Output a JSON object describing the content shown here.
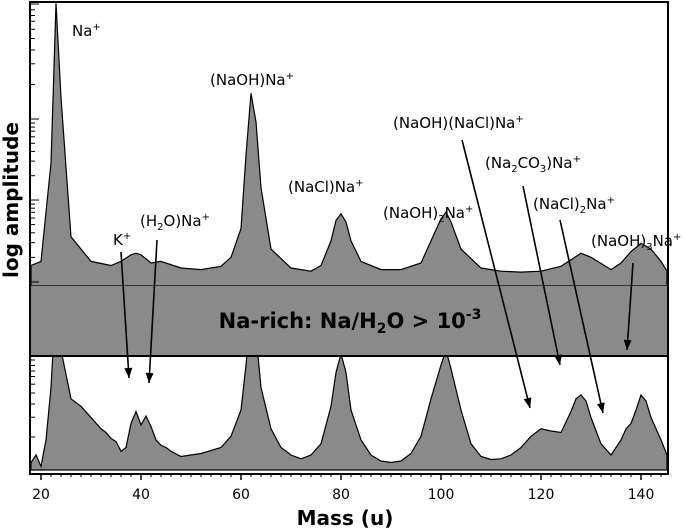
{
  "chart_data": {
    "type": "area",
    "xlabel": "Mass (u)",
    "ylabel": "log amplitude",
    "xlim": [
      18,
      150
    ],
    "x_ticks": [
      20,
      40,
      60,
      80,
      100,
      120,
      140
    ],
    "band_label": {
      "prefix": "Na-rich: Na/H",
      "sub": "2",
      "mid": "O > 10",
      "sup": "-3"
    },
    "series": [
      {
        "x": [
          18,
          20,
          22,
          23,
          24,
          26,
          30,
          34,
          36,
          38,
          39,
          40,
          41,
          42,
          44,
          48,
          52,
          56,
          58,
          60,
          61,
          62,
          63,
          64,
          66,
          70,
          74,
          76,
          78,
          79,
          80,
          81,
          82,
          84,
          88,
          92,
          96,
          98,
          100,
          101,
          102,
          104,
          108,
          112,
          116,
          120,
          124,
          126,
          128,
          130,
          134,
          136,
          138,
          140,
          142,
          144,
          146,
          150
        ],
        "y": [
          0.25,
          0.3,
          1.5,
          3.45,
          2.3,
          0.6,
          0.3,
          0.25,
          0.3,
          0.38,
          0.4,
          0.38,
          0.33,
          0.28,
          0.3,
          0.22,
          0.2,
          0.24,
          0.35,
          0.7,
          1.6,
          2.35,
          2.0,
          1.2,
          0.45,
          0.22,
          0.18,
          0.25,
          0.55,
          0.8,
          0.88,
          0.78,
          0.55,
          0.3,
          0.2,
          0.2,
          0.28,
          0.55,
          0.82,
          0.9,
          0.78,
          0.45,
          0.22,
          0.18,
          0.17,
          0.18,
          0.24,
          0.32,
          0.4,
          0.35,
          0.2,
          0.28,
          0.42,
          0.52,
          0.45,
          0.3,
          0.18,
          0.15
        ]
      },
      {
        "x": [
          18,
          19,
          20,
          21,
          22,
          23,
          24,
          26,
          28,
          30,
          32,
          33,
          34,
          35,
          36,
          37,
          38,
          39,
          40,
          41,
          42,
          43,
          44,
          45,
          46,
          48,
          50,
          52,
          54,
          56,
          58,
          60,
          61,
          62,
          63,
          64,
          66,
          68,
          70,
          72,
          74,
          76,
          78,
          79,
          80,
          81,
          82,
          84,
          86,
          88,
          90,
          92,
          94,
          96,
          98,
          100,
          101,
          102,
          104,
          106,
          108,
          110,
          112,
          114,
          116,
          118,
          120,
          122,
          124,
          126,
          127,
          128,
          129,
          130,
          132,
          134,
          136,
          137,
          138,
          139,
          140,
          141,
          142,
          144,
          146,
          148,
          150
        ],
        "y": [
          0.1,
          0.2,
          0.05,
          0.4,
          1.1,
          2.3,
          1.6,
          0.95,
          0.85,
          0.7,
          0.55,
          0.5,
          0.42,
          0.38,
          0.25,
          0.3,
          0.62,
          0.78,
          0.6,
          0.72,
          0.58,
          0.4,
          0.33,
          0.3,
          0.25,
          0.18,
          0.2,
          0.22,
          0.26,
          0.3,
          0.45,
          0.8,
          1.4,
          2.2,
          1.8,
          1.1,
          0.55,
          0.3,
          0.2,
          0.15,
          0.2,
          0.35,
          0.85,
          1.3,
          1.55,
          1.3,
          0.8,
          0.4,
          0.2,
          0.12,
          0.1,
          0.12,
          0.22,
          0.45,
          0.95,
          1.4,
          1.6,
          1.35,
          0.8,
          0.35,
          0.18,
          0.14,
          0.15,
          0.2,
          0.3,
          0.45,
          0.55,
          0.52,
          0.5,
          0.78,
          0.95,
          1.0,
          0.92,
          0.7,
          0.35,
          0.2,
          0.4,
          0.55,
          0.62,
          0.8,
          1.0,
          0.92,
          0.7,
          0.4,
          0.2,
          0.08,
          0.04
        ]
      }
    ],
    "annotations": [
      {
        "id": "na",
        "parts": [
          [
            "",
            "Na"
          ],
          [
            "sup",
            "+"
          ]
        ]
      },
      {
        "id": "naoh-na",
        "parts": [
          [
            "",
            "(NaOH)Na"
          ],
          [
            "sup",
            "+"
          ]
        ]
      },
      {
        "id": "nacl-na",
        "parts": [
          [
            "",
            "(NaCl)Na"
          ],
          [
            "sup",
            "+"
          ]
        ]
      },
      {
        "id": "naoh2-na",
        "parts": [
          [
            "",
            "(NaOH)"
          ],
          [
            "sub",
            "2"
          ],
          [
            "",
            "Na"
          ],
          [
            "sup",
            "+"
          ]
        ]
      },
      {
        "id": "naoh-nacl-na",
        "parts": [
          [
            "",
            "(NaOH)(NaCl)Na"
          ],
          [
            "sup",
            "+"
          ]
        ]
      },
      {
        "id": "na2co3-na",
        "parts": [
          [
            "",
            "(Na"
          ],
          [
            "sub",
            "2"
          ],
          [
            "",
            "CO"
          ],
          [
            "sub",
            "3"
          ],
          [
            "",
            ")Na"
          ],
          [
            "sup",
            "+"
          ]
        ]
      },
      {
        "id": "nacl2-na",
        "parts": [
          [
            "",
            "(NaCl)"
          ],
          [
            "sub",
            "2"
          ],
          [
            "",
            "Na"
          ],
          [
            "sup",
            "+"
          ]
        ]
      },
      {
        "id": "naoh3-na",
        "parts": [
          [
            "",
            "(NaOH)"
          ],
          [
            "sub",
            "3"
          ],
          [
            "",
            "Na"
          ],
          [
            "sup",
            "+"
          ]
        ]
      },
      {
        "id": "k",
        "parts": [
          [
            "",
            "K"
          ],
          [
            "sup",
            "+"
          ]
        ]
      },
      {
        "id": "h2o-na",
        "parts": [
          [
            "",
            "(H"
          ],
          [
            "sub",
            "2"
          ],
          [
            "",
            "O)Na"
          ],
          [
            "sup",
            "+"
          ]
        ]
      }
    ]
  }
}
